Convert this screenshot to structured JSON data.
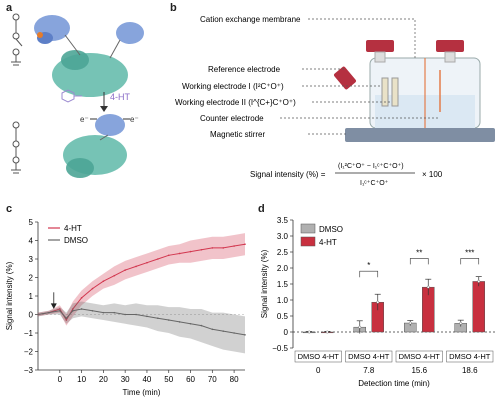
{
  "panels": {
    "a": {
      "letter": "a",
      "label_4ht": "4-HT",
      "eminus": "e⁻"
    },
    "b": {
      "letter": "b",
      "labels": {
        "membrane": "Cation exchange membrane",
        "ref": "Reference electrode",
        "we1": "Working electrode I (I²C⁺O⁺)",
        "we2": "Working electrode II (I^{C+}C⁺O⁺)",
        "counter": "Counter electrode",
        "stirrer": "Magnetic stirrer"
      },
      "formula": {
        "lhs": "Signal intensity (%) =",
        "num": "(I₁²C⁺O⁺ − I₁ᶜ⁺C⁺O⁺)",
        "den": "I₁ᶜ⁺C⁺O⁺",
        "rhs": "× 100"
      }
    },
    "c": {
      "letter": "c"
    },
    "d": {
      "letter": "d",
      "sig": [
        "*",
        "**",
        "***"
      ]
    }
  },
  "chart_data": [
    {
      "id": "c",
      "type": "line",
      "xlabel": "Time (min)",
      "ylabel": "Signal intensity (%)",
      "xlim": [
        -10,
        85
      ],
      "ylim": [
        -3,
        5
      ],
      "xticks": [
        0,
        10,
        20,
        30,
        40,
        50,
        60,
        70,
        80
      ],
      "yticks": [
        -3,
        -2,
        -1,
        0,
        1,
        2,
        3,
        4,
        5
      ],
      "legend_position": "top-left",
      "series": [
        {
          "name": "4-HT",
          "color": "#d2374f",
          "x": [
            -10,
            -5,
            0,
            3,
            6,
            10,
            15,
            20,
            25,
            30,
            35,
            40,
            45,
            50,
            55,
            60,
            65,
            70,
            75,
            80,
            85
          ],
          "y": [
            0,
            0.1,
            0.3,
            -0.3,
            0.3,
            0.9,
            1.4,
            1.8,
            2.1,
            2.4,
            2.6,
            2.8,
            3.0,
            3.2,
            3.3,
            3.4,
            3.5,
            3.6,
            3.6,
            3.7,
            3.8
          ],
          "err": [
            0.1,
            0.1,
            0.2,
            0.3,
            0.4,
            0.4,
            0.4,
            0.4,
            0.5,
            0.5,
            0.5,
            0.5,
            0.5,
            0.5,
            0.5,
            0.6,
            0.6,
            0.6,
            0.6,
            0.6,
            0.6
          ]
        },
        {
          "name": "DMSO",
          "color": "#666666",
          "x": [
            -10,
            -5,
            0,
            3,
            6,
            10,
            15,
            20,
            25,
            30,
            35,
            40,
            45,
            50,
            55,
            60,
            65,
            70,
            75,
            80,
            85
          ],
          "y": [
            0,
            0.1,
            0.2,
            -0.2,
            0.2,
            0.3,
            0.2,
            0.1,
            0.1,
            0.0,
            0.0,
            -0.1,
            -0.2,
            -0.3,
            -0.4,
            -0.5,
            -0.6,
            -0.8,
            -0.9,
            -1.0,
            -1.1
          ],
          "err": [
            0.1,
            0.1,
            0.2,
            0.3,
            0.4,
            0.4,
            0.4,
            0.4,
            0.5,
            0.5,
            0.6,
            0.6,
            0.7,
            0.7,
            0.8,
            0.8,
            0.9,
            0.9,
            1.0,
            1.0,
            1.0
          ]
        }
      ],
      "arrow_at_x": 0
    },
    {
      "id": "d",
      "type": "bar",
      "xlabel": "Detection time (min)",
      "ylabel": "Signal intensity (%)",
      "ylim": [
        -0.5,
        3.5
      ],
      "yticks": [
        -0.5,
        0,
        0.5,
        1.0,
        1.5,
        2.0,
        2.5,
        3.0,
        3.5
      ],
      "ytick_labels": [
        "−0.5",
        "0",
        "0.5",
        "1.0",
        "1.5",
        "2.0",
        "2.5",
        "3.0",
        "3.5"
      ],
      "groups": [
        "0",
        "7.8",
        "15.6",
        "18.6"
      ],
      "group_sublabels": [
        "DMSO 4-HT",
        "DMSO 4-HT",
        "DMSO 4-HT",
        "DMSO 4-HT"
      ],
      "legend_position": "top-left",
      "series": [
        {
          "name": "DMSO",
          "color": "#b0b0b0",
          "values": [
            0.0,
            0.15,
            0.28,
            0.27
          ],
          "err": [
            0.02,
            0.2,
            0.08,
            0.1
          ]
        },
        {
          "name": "4-HT",
          "color": "#c8303f",
          "values": [
            0.0,
            0.93,
            1.4,
            1.58
          ],
          "err": [
            0.02,
            0.25,
            0.25,
            0.15
          ]
        }
      ]
    }
  ]
}
